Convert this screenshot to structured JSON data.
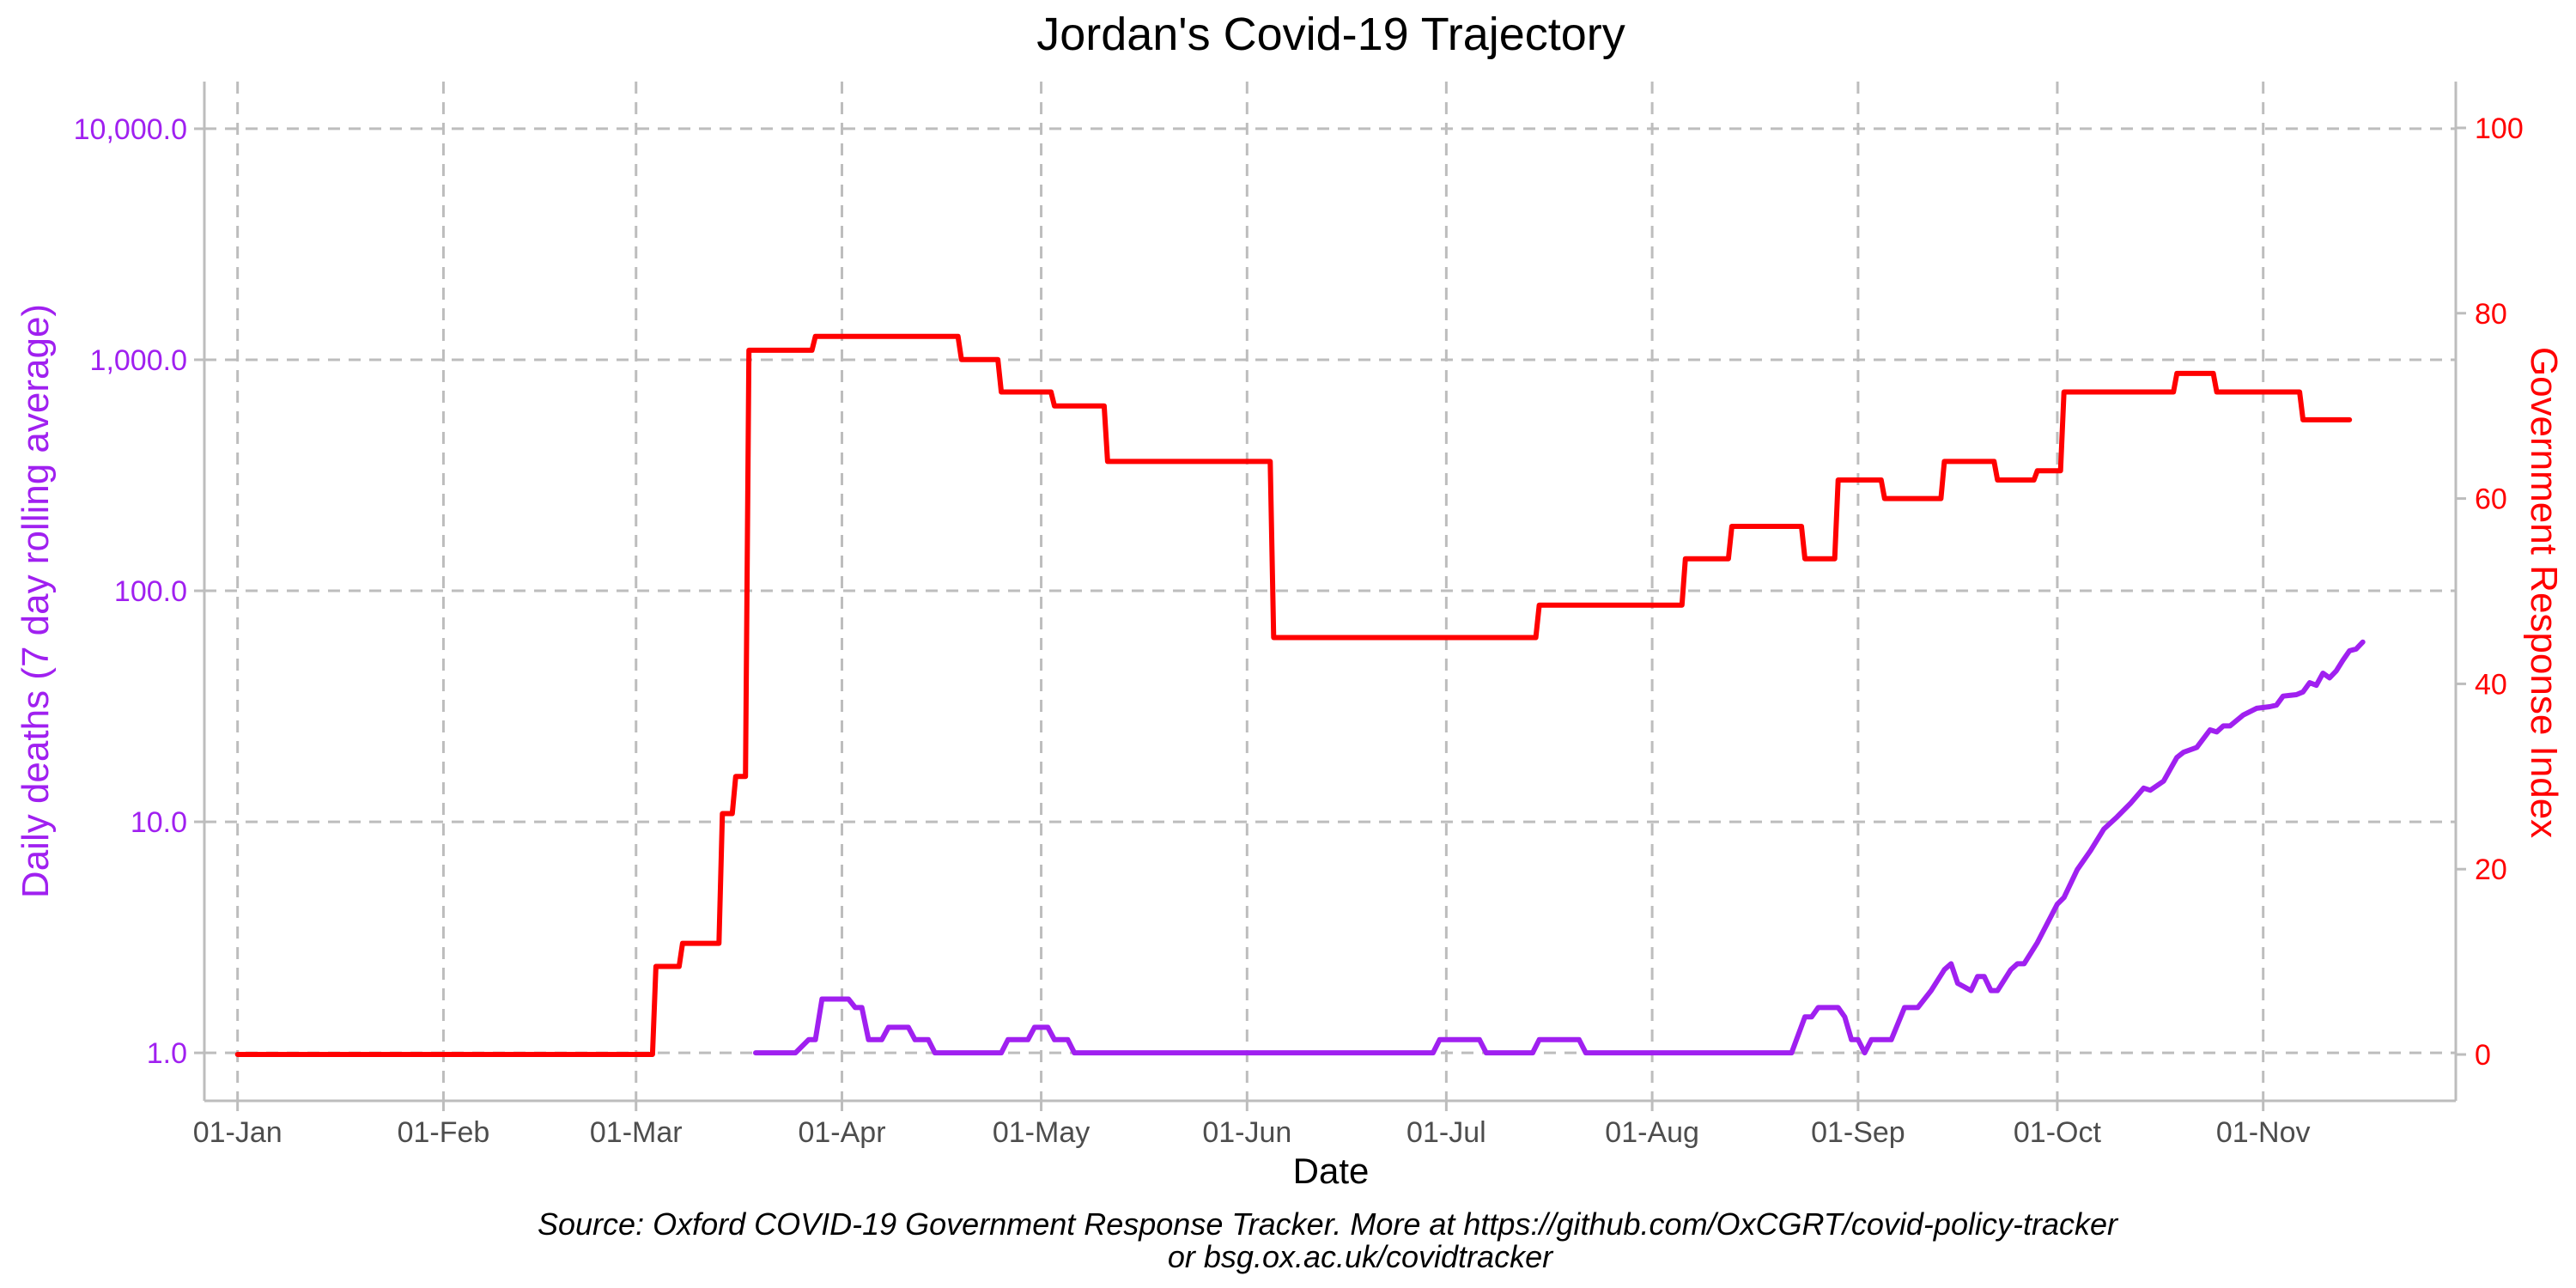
{
  "chart_data": {
    "type": "line",
    "title": "Jordan's Covid-19 Trajectory",
    "xlabel": "Date",
    "ylabel_left": "Daily deaths (7 day rolling average)",
    "ylabel_right": "Government Response Index",
    "caption_line1": "Source: Oxford COVID-19 Government Response Tracker. More at https://github.com/OxCGRT/covid-policy-tracker",
    "caption_line2": "or bsg.ox.ac.uk/covidtracker",
    "x_range": [
      "2019-12-27",
      "2020-11-30"
    ],
    "x_ticks": [
      {
        "date": "2020-01-01",
        "label": "01-Jan"
      },
      {
        "date": "2020-02-01",
        "label": "01-Feb"
      },
      {
        "date": "2020-03-01",
        "label": "01-Mar"
      },
      {
        "date": "2020-04-01",
        "label": "01-Apr"
      },
      {
        "date": "2020-05-01",
        "label": "01-May"
      },
      {
        "date": "2020-06-01",
        "label": "01-Jun"
      },
      {
        "date": "2020-07-01",
        "label": "01-Jul"
      },
      {
        "date": "2020-08-01",
        "label": "01-Aug"
      },
      {
        "date": "2020-09-01",
        "label": "01-Sep"
      },
      {
        "date": "2020-10-01",
        "label": "01-Oct"
      },
      {
        "date": "2020-11-01",
        "label": "01-Nov"
      }
    ],
    "y_left": {
      "scale": "log",
      "range": [
        0.62,
        16000
      ],
      "ticks": [
        {
          "value": 1,
          "label": "1.0"
        },
        {
          "value": 10,
          "label": "10.0"
        },
        {
          "value": 100,
          "label": "100.0"
        },
        {
          "value": 1000,
          "label": "1,000.0"
        },
        {
          "value": 10000,
          "label": "10,000.0"
        }
      ],
      "color": "#a020f0"
    },
    "y_right": {
      "scale": "linear",
      "range": [
        -5,
        105
      ],
      "ticks": [
        {
          "value": 0,
          "label": "0"
        },
        {
          "value": 20,
          "label": "20"
        },
        {
          "value": 40,
          "label": "40"
        },
        {
          "value": 60,
          "label": "60"
        },
        {
          "value": 80,
          "label": "80"
        },
        {
          "value": 100,
          "label": "100"
        }
      ],
      "color": "#ff0000"
    },
    "grid": true,
    "series": [
      {
        "axis": "right",
        "color": "#ff0000",
        "step": true,
        "points": [
          [
            "2020-01-01",
            0
          ],
          [
            "2020-03-04",
            9.5
          ],
          [
            "2020-03-08",
            12
          ],
          [
            "2020-03-14",
            26
          ],
          [
            "2020-03-16",
            30
          ],
          [
            "2020-03-18",
            76
          ],
          [
            "2020-03-28",
            77.5
          ],
          [
            "2020-04-19",
            75
          ],
          [
            "2020-04-25",
            71.5
          ],
          [
            "2020-05-03",
            70
          ],
          [
            "2020-05-11",
            64
          ],
          [
            "2020-06-05",
            45
          ],
          [
            "2020-07-15",
            48.5
          ],
          [
            "2020-08-06",
            53.5
          ],
          [
            "2020-08-13",
            57
          ],
          [
            "2020-08-24",
            53.5
          ],
          [
            "2020-08-29",
            62
          ],
          [
            "2020-09-05",
            60
          ],
          [
            "2020-09-14",
            64
          ],
          [
            "2020-09-22",
            62
          ],
          [
            "2020-09-28",
            63
          ],
          [
            "2020-10-02",
            71.5
          ],
          [
            "2020-10-19",
            73.5
          ],
          [
            "2020-10-25",
            71.5
          ],
          [
            "2020-11-07",
            68.5
          ],
          [
            "2020-11-14",
            68.5
          ]
        ]
      },
      {
        "axis": "left",
        "color": "#a020f0",
        "step": false,
        "points": [
          [
            "2020-03-19",
            1.0
          ],
          [
            "2020-03-25",
            1.0
          ],
          [
            "2020-03-27",
            1.14
          ],
          [
            "2020-03-28",
            1.14
          ],
          [
            "2020-03-29",
            1.71
          ],
          [
            "2020-04-02",
            1.71
          ],
          [
            "2020-04-03",
            1.57
          ],
          [
            "2020-04-04",
            1.57
          ],
          [
            "2020-04-05",
            1.14
          ],
          [
            "2020-04-07",
            1.14
          ],
          [
            "2020-04-08",
            1.29
          ],
          [
            "2020-04-11",
            1.29
          ],
          [
            "2020-04-12",
            1.14
          ],
          [
            "2020-04-14",
            1.14
          ],
          [
            "2020-04-15",
            1.0
          ],
          [
            "2020-04-25",
            1.0
          ],
          [
            "2020-04-26",
            1.14
          ],
          [
            "2020-04-29",
            1.14
          ],
          [
            "2020-04-30",
            1.29
          ],
          [
            "2020-05-02",
            1.29
          ],
          [
            "2020-05-03",
            1.14
          ],
          [
            "2020-05-05",
            1.14
          ],
          [
            "2020-05-06",
            1.0
          ],
          [
            "2020-06-29",
            1.0
          ],
          [
            "2020-06-30",
            1.14
          ],
          [
            "2020-07-06",
            1.14
          ],
          [
            "2020-07-07",
            1.0
          ],
          [
            "2020-07-14",
            1.0
          ],
          [
            "2020-07-15",
            1.14
          ],
          [
            "2020-07-21",
            1.14
          ],
          [
            "2020-07-22",
            1.0
          ],
          [
            "2020-08-22",
            1.0
          ],
          [
            "2020-08-24",
            1.43
          ],
          [
            "2020-08-25",
            1.43
          ],
          [
            "2020-08-26",
            1.57
          ],
          [
            "2020-08-29",
            1.57
          ],
          [
            "2020-08-30",
            1.43
          ],
          [
            "2020-08-31",
            1.14
          ],
          [
            "2020-09-01",
            1.14
          ],
          [
            "2020-09-02",
            1.0
          ],
          [
            "2020-09-03",
            1.14
          ],
          [
            "2020-09-06",
            1.14
          ],
          [
            "2020-09-08",
            1.57
          ],
          [
            "2020-09-10",
            1.57
          ],
          [
            "2020-09-12",
            1.86
          ],
          [
            "2020-09-14",
            2.29
          ],
          [
            "2020-09-15",
            2.43
          ],
          [
            "2020-09-16",
            2.0
          ],
          [
            "2020-09-18",
            1.86
          ],
          [
            "2020-09-19",
            2.14
          ],
          [
            "2020-09-20",
            2.14
          ],
          [
            "2020-09-21",
            1.86
          ],
          [
            "2020-09-22",
            1.86
          ],
          [
            "2020-09-24",
            2.29
          ],
          [
            "2020-09-25",
            2.43
          ],
          [
            "2020-09-26",
            2.43
          ],
          [
            "2020-09-28",
            3.0
          ],
          [
            "2020-10-01",
            4.4
          ],
          [
            "2020-10-02",
            4.7
          ],
          [
            "2020-10-04",
            6.2
          ],
          [
            "2020-10-06",
            7.5
          ],
          [
            "2020-10-08",
            9.3
          ],
          [
            "2020-10-10",
            10.5
          ],
          [
            "2020-10-12",
            12.0
          ],
          [
            "2020-10-14",
            14.0
          ],
          [
            "2020-10-15",
            13.7
          ],
          [
            "2020-10-17",
            15.0
          ],
          [
            "2020-10-19",
            19.0
          ],
          [
            "2020-10-20",
            20.0
          ],
          [
            "2020-10-22",
            21.0
          ],
          [
            "2020-10-24",
            25.0
          ],
          [
            "2020-10-25",
            24.5
          ],
          [
            "2020-10-26",
            26.0
          ],
          [
            "2020-10-27",
            26.0
          ],
          [
            "2020-10-29",
            29.0
          ],
          [
            "2020-10-31",
            31.0
          ],
          [
            "2020-11-02",
            31.5
          ],
          [
            "2020-11-03",
            32.0
          ],
          [
            "2020-11-04",
            35.0
          ],
          [
            "2020-11-06",
            35.5
          ],
          [
            "2020-11-07",
            36.5
          ],
          [
            "2020-11-08",
            40.0
          ],
          [
            "2020-11-09",
            39.0
          ],
          [
            "2020-11-10",
            44.0
          ],
          [
            "2020-11-11",
            42.0
          ],
          [
            "2020-11-12",
            45.0
          ],
          [
            "2020-11-13",
            50.0
          ],
          [
            "2020-11-14",
            55.0
          ],
          [
            "2020-11-15",
            56.0
          ],
          [
            "2020-11-16",
            60.0
          ]
        ]
      }
    ]
  }
}
